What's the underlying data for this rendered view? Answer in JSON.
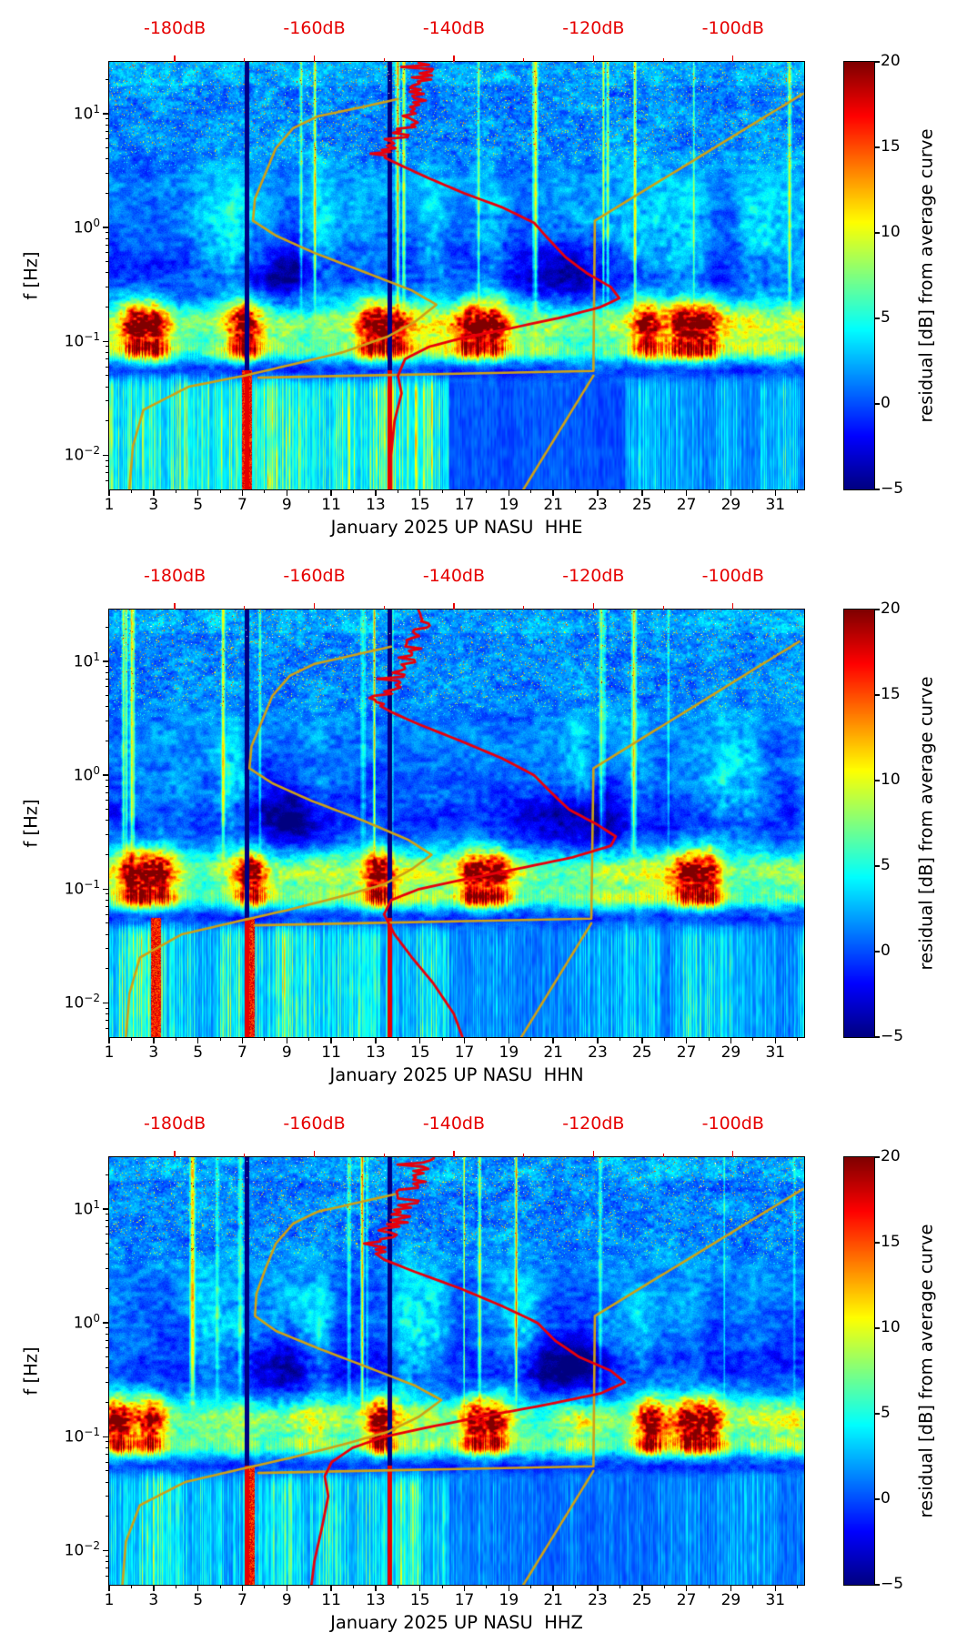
{
  "style": {
    "background": "#ffffff",
    "top_axis_color": "#e60000",
    "red_curve_color": "#e8000b",
    "yellow_curve_color": "#cda117",
    "axis_color": "#000000"
  },
  "chart_data": [
    {
      "type": "heatmap",
      "panel": "top",
      "channel": "HHE",
      "xlabel": "January 2025 UP NASU  HHE",
      "ylabel": "f [Hz]",
      "x_tick_labels": [
        "1",
        "3",
        "5",
        "7",
        "9",
        "11",
        "13",
        "15",
        "17",
        "19",
        "21",
        "23",
        "25",
        "27",
        "29",
        "31"
      ],
      "x_range_days": [
        1,
        32.3
      ],
      "y_scale": "log",
      "y_range_hz": [
        0.005,
        28.6
      ],
      "y_tick_exponents": [
        "1",
        "0",
        "−1",
        "−2"
      ],
      "top_axis": {
        "tick_labels": [
          "-180dB",
          "-160dB",
          "-140dB",
          "-120dB",
          "-100dB"
        ],
        "tick_db": [
          -180,
          -160,
          -140,
          -120,
          -100
        ],
        "range_db": [
          -189.4,
          -89.8
        ]
      },
      "colorbar": {
        "label": "residual [dB] from average curve",
        "min": -5,
        "max": 20,
        "tick_labels": [
          "20",
          "15",
          "10",
          "5",
          "0",
          "−5"
        ],
        "tick_values": [
          20,
          15,
          10,
          5,
          0,
          -5
        ],
        "colormap": "jet"
      },
      "curves": {
        "red_avg_psd": [
          [
            0.005,
            -149
          ],
          [
            0.01,
            -149
          ],
          [
            0.02,
            -148.5
          ],
          [
            0.035,
            -147.5
          ],
          [
            0.05,
            -148
          ],
          [
            0.07,
            -147
          ],
          [
            0.09,
            -143.5
          ],
          [
            0.11,
            -138
          ],
          [
            0.13,
            -132
          ],
          [
            0.16,
            -125
          ],
          [
            0.2,
            -119
          ],
          [
            0.24,
            -116.3
          ],
          [
            0.3,
            -117.5
          ],
          [
            0.4,
            -121
          ],
          [
            0.55,
            -124
          ],
          [
            0.8,
            -126.5
          ],
          [
            1.1,
            -128.5
          ],
          [
            1.5,
            -133
          ],
          [
            2,
            -138.5
          ],
          [
            2.7,
            -143.5
          ],
          [
            3.5,
            -147.5
          ],
          [
            4.3,
            -150.5
          ],
          [
            5,
            -150
          ],
          [
            6,
            -148.5
          ],
          [
            8,
            -147
          ],
          [
            11,
            -146
          ],
          [
            15,
            -145
          ],
          [
            20,
            -144.5
          ],
          [
            28,
            -143.5
          ]
        ],
        "yellow_ref_psd": [
          [
            0.005,
            -186.5
          ],
          [
            0.012,
            -186
          ],
          [
            0.025,
            -184.5
          ],
          [
            0.04,
            -178
          ],
          [
            0.05,
            -170
          ],
          [
            0.062,
            -163.5
          ],
          [
            0.08,
            -156
          ],
          [
            0.11,
            -149.5
          ],
          [
            0.15,
            -145.5
          ],
          [
            0.21,
            -142.5
          ],
          [
            0.28,
            -146
          ],
          [
            0.4,
            -152.5
          ],
          [
            0.6,
            -160
          ],
          [
            0.85,
            -165.5
          ],
          [
            1.15,
            -168.8
          ],
          [
            1.8,
            -168.5
          ],
          [
            3,
            -167
          ],
          [
            5,
            -165.5
          ],
          [
            7.5,
            -163
          ],
          [
            9.5,
            -159.5
          ],
          [
            11.5,
            -153
          ],
          [
            13.5,
            -148
          ]
        ],
        "yellow_line_upper": [
          [
            0.048,
            -168
          ],
          [
            0.055,
            -120
          ],
          [
            1.15,
            -119.8
          ],
          [
            15,
            -90
          ]
        ],
        "yellow_line_lower": [
          [
            0.0045,
            -130.5
          ],
          [
            0.05,
            -120
          ]
        ]
      },
      "texture": {
        "seed": 11,
        "bright_line_count": 11,
        "micro_hot_days": [
          2.2,
          3.1,
          7.1,
          12.8,
          13.8,
          17.3,
          18.4,
          25.2,
          26.8,
          27.8
        ],
        "dark_days": [
          [
            8.8,
            1.2
          ],
          [
            21.9,
            1.7
          ]
        ],
        "low_profile": [
          [
            1,
            16.3,
            1.0
          ],
          [
            16.3,
            24.2,
            0.14
          ],
          [
            24.2,
            32.3,
            0.55
          ]
        ],
        "gap_days": [
          7.18,
          13.62
        ],
        "hot_low_days": [
          7.18
        ]
      }
    },
    {
      "type": "heatmap",
      "panel": "middle",
      "channel": "HHN",
      "xlabel": "January 2025 UP NASU  HHN",
      "ylabel": "f [Hz]",
      "x_tick_labels": [
        "1",
        "3",
        "5",
        "7",
        "9",
        "11",
        "13",
        "15",
        "17",
        "19",
        "21",
        "23",
        "25",
        "27",
        "29",
        "31"
      ],
      "x_range_days": [
        1,
        32.3
      ],
      "y_scale": "log",
      "y_range_hz": [
        0.005,
        28.6
      ],
      "y_tick_exponents": [
        "1",
        "0",
        "−1",
        "−2"
      ],
      "top_axis": {
        "tick_labels": [
          "-180dB",
          "-160dB",
          "-140dB",
          "-120dB",
          "-100dB"
        ],
        "tick_db": [
          -180,
          -160,
          -140,
          -120,
          -100
        ],
        "range_db": [
          -189.4,
          -89.8
        ]
      },
      "colorbar": {
        "label": "residual [dB] from average curve",
        "min": -5,
        "max": 20,
        "tick_labels": [
          "20",
          "15",
          "10",
          "5",
          "0",
          "−5"
        ],
        "tick_values": [
          20,
          15,
          10,
          5,
          0,
          -5
        ],
        "colormap": "jet"
      },
      "curves": {
        "red_avg_psd": [
          [
            0.0045,
            -138.5
          ],
          [
            0.008,
            -140
          ],
          [
            0.015,
            -143
          ],
          [
            0.025,
            -146
          ],
          [
            0.04,
            -148.5
          ],
          [
            0.06,
            -150
          ],
          [
            0.08,
            -149
          ],
          [
            0.1,
            -145
          ],
          [
            0.12,
            -139
          ],
          [
            0.15,
            -131
          ],
          [
            0.19,
            -123
          ],
          [
            0.24,
            -117.5
          ],
          [
            0.29,
            -116.8
          ],
          [
            0.37,
            -119.5
          ],
          [
            0.5,
            -123.5
          ],
          [
            0.7,
            -126
          ],
          [
            1.0,
            -128.5
          ],
          [
            1.4,
            -133
          ],
          [
            2,
            -139
          ],
          [
            2.8,
            -145
          ],
          [
            3.6,
            -149
          ],
          [
            4.4,
            -151.5
          ],
          [
            5.2,
            -150.5
          ],
          [
            6.5,
            -148.5
          ],
          [
            9,
            -147
          ],
          [
            13,
            -146
          ],
          [
            19,
            -145
          ],
          [
            28,
            -144
          ]
        ],
        "yellow_ref_psd": [
          [
            0.005,
            -187
          ],
          [
            0.012,
            -186.5
          ],
          [
            0.025,
            -185
          ],
          [
            0.04,
            -179
          ],
          [
            0.052,
            -171
          ],
          [
            0.065,
            -164
          ],
          [
            0.085,
            -156.5
          ],
          [
            0.11,
            -150
          ],
          [
            0.15,
            -146
          ],
          [
            0.2,
            -143.2
          ],
          [
            0.27,
            -146.5
          ],
          [
            0.4,
            -153
          ],
          [
            0.6,
            -160.5
          ],
          [
            0.85,
            -166
          ],
          [
            1.15,
            -169.3
          ],
          [
            1.8,
            -169
          ],
          [
            3,
            -167.5
          ],
          [
            5,
            -166
          ],
          [
            7.5,
            -163.5
          ],
          [
            9.5,
            -160
          ],
          [
            11.5,
            -154
          ],
          [
            13.5,
            -149
          ]
        ],
        "yellow_line_upper": [
          [
            0.048,
            -168.5
          ],
          [
            0.055,
            -120.3
          ],
          [
            1.15,
            -120
          ],
          [
            15,
            -90.5
          ]
        ],
        "yellow_line_lower": [
          [
            0.0045,
            -130.8
          ],
          [
            0.05,
            -120.3
          ]
        ]
      },
      "texture": {
        "seed": 22,
        "bright_line_count": 12,
        "micro_hot_days": [
          2.1,
          3.2,
          7.4,
          13.1,
          17.4,
          18.3,
          27.1,
          27.9
        ],
        "dark_days": [
          [
            9.1,
            1.2
          ],
          [
            22.1,
            1.8
          ]
        ],
        "low_profile": [
          [
            1,
            9.2,
            1.0
          ],
          [
            9.2,
            16.3,
            0.8
          ],
          [
            16.3,
            24.2,
            0.45
          ],
          [
            24.2,
            32.3,
            0.6
          ]
        ],
        "gap_days": [
          7.18,
          13.62
        ],
        "hot_low_days": [
          3.1,
          7.3
        ]
      }
    },
    {
      "type": "heatmap",
      "panel": "bottom",
      "channel": "HHZ",
      "xlabel": "January 2025 UP NASU  HHZ",
      "ylabel": "f [Hz]",
      "x_tick_labels": [
        "1",
        "3",
        "5",
        "7",
        "9",
        "11",
        "13",
        "15",
        "17",
        "19",
        "21",
        "23",
        "25",
        "27",
        "29",
        "31"
      ],
      "x_range_days": [
        1,
        32.3
      ],
      "y_scale": "log",
      "y_range_hz": [
        0.005,
        28.6
      ],
      "y_tick_exponents": [
        "1",
        "0",
        "−1",
        "−2"
      ],
      "top_axis": {
        "tick_labels": [
          "-180dB",
          "-160dB",
          "-140dB",
          "-120dB",
          "-100dB"
        ],
        "tick_db": [
          -180,
          -160,
          -140,
          -120,
          -100
        ],
        "range_db": [
          -189.4,
          -89.8
        ]
      },
      "colorbar": {
        "label": "residual [dB] from average curve",
        "min": -5,
        "max": 20,
        "tick_labels": [
          "20",
          "15",
          "10",
          "5",
          "0",
          "−5"
        ],
        "tick_values": [
          20,
          15,
          10,
          5,
          0,
          -5
        ],
        "colormap": "jet"
      },
      "curves": {
        "red_avg_psd": [
          [
            0.0045,
            -160.5
          ],
          [
            0.008,
            -160
          ],
          [
            0.015,
            -159
          ],
          [
            0.03,
            -158
          ],
          [
            0.045,
            -158.5
          ],
          [
            0.06,
            -157.5
          ],
          [
            0.08,
            -154.5
          ],
          [
            0.1,
            -150
          ],
          [
            0.12,
            -144
          ],
          [
            0.15,
            -136
          ],
          [
            0.19,
            -127
          ],
          [
            0.24,
            -119
          ],
          [
            0.3,
            -115.5
          ],
          [
            0.38,
            -117.5
          ],
          [
            0.5,
            -122
          ],
          [
            0.7,
            -125.5
          ],
          [
            1.0,
            -128
          ],
          [
            1.4,
            -133
          ],
          [
            2,
            -139
          ],
          [
            2.8,
            -145.5
          ],
          [
            3.6,
            -150
          ],
          [
            4.4,
            -152
          ],
          [
            5.2,
            -151
          ],
          [
            6.5,
            -149
          ],
          [
            9,
            -147.5
          ],
          [
            13,
            -146.5
          ],
          [
            19,
            -145.5
          ],
          [
            28,
            -144.5
          ]
        ],
        "yellow_ref_psd": [
          [
            0.005,
            -187.5
          ],
          [
            0.012,
            -187
          ],
          [
            0.025,
            -185
          ],
          [
            0.04,
            -178.5
          ],
          [
            0.052,
            -170.5
          ],
          [
            0.065,
            -163.5
          ],
          [
            0.085,
            -156
          ],
          [
            0.11,
            -149.5
          ],
          [
            0.15,
            -145
          ],
          [
            0.21,
            -141.8
          ],
          [
            0.28,
            -145.5
          ],
          [
            0.4,
            -152
          ],
          [
            0.6,
            -159.5
          ],
          [
            0.85,
            -165.5
          ],
          [
            1.15,
            -168.5
          ],
          [
            1.8,
            -168.3
          ],
          [
            3,
            -167
          ],
          [
            5,
            -165.5
          ],
          [
            7.5,
            -163
          ],
          [
            9.5,
            -159.5
          ],
          [
            11.5,
            -153.5
          ],
          [
            13.5,
            -148.5
          ]
        ],
        "yellow_line_upper": [
          [
            0.048,
            -168
          ],
          [
            0.055,
            -120
          ],
          [
            1.15,
            -119.8
          ],
          [
            15,
            -90
          ]
        ],
        "yellow_line_lower": [
          [
            0.0045,
            -130.5
          ],
          [
            0.05,
            -120
          ]
        ]
      },
      "texture": {
        "seed": 33,
        "bright_line_count": 12,
        "micro_hot_days": [
          1.4,
          2.9,
          13.2,
          17.4,
          18.4,
          25.4,
          27.0,
          28.0
        ],
        "dark_days": [
          [
            8.8,
            1.3
          ],
          [
            21.6,
            1.6
          ]
        ],
        "low_profile": [
          [
            1,
            16.3,
            0.85
          ],
          [
            16.3,
            24.2,
            0.3
          ],
          [
            24.2,
            32.3,
            0.45
          ]
        ],
        "gap_days": [
          7.18,
          13.62
        ],
        "hot_low_days": [
          7.3
        ]
      }
    }
  ]
}
